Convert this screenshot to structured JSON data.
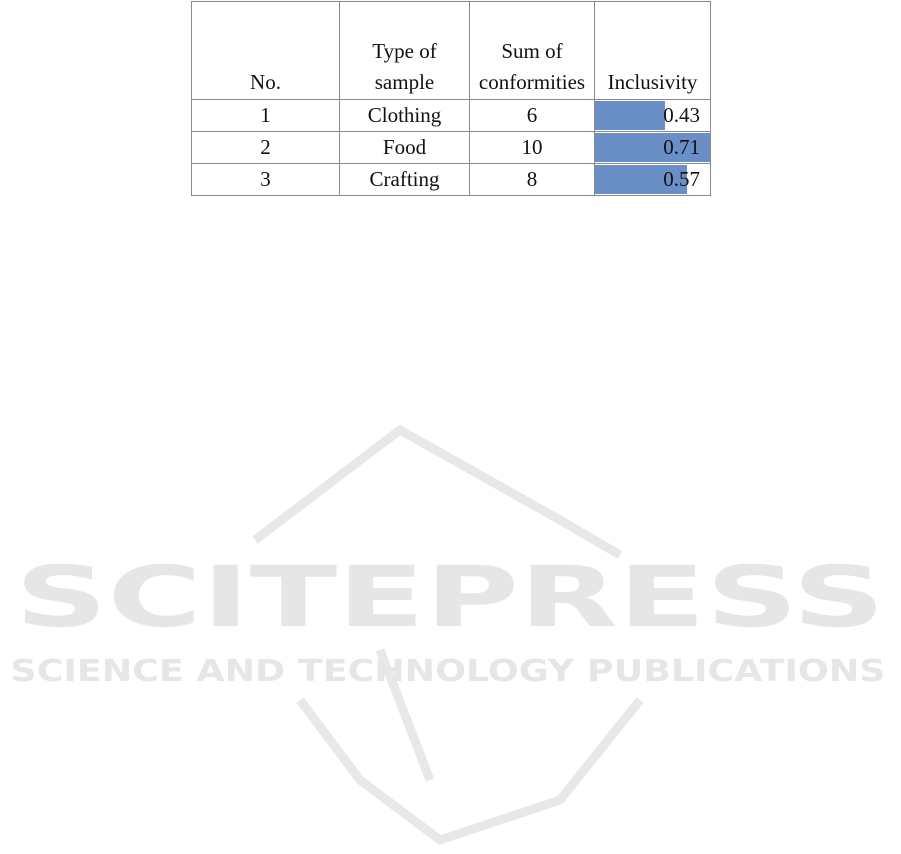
{
  "table": {
    "headers": [
      "No.",
      "Type of sample",
      "Sum of conformities",
      "Inclusivity"
    ],
    "header_lines": [
      [
        "No."
      ],
      [
        "Type of",
        "sample"
      ],
      [
        "Sum of",
        "conformities"
      ],
      [
        "Inclusivity"
      ]
    ],
    "rows": [
      {
        "no": "1",
        "type": "Clothing",
        "sum": "6",
        "inclusivity": "0.43",
        "value": 0.43
      },
      {
        "no": "2",
        "type": "Food",
        "sum": "10",
        "inclusivity": "0.71",
        "value": 0.71
      },
      {
        "no": "3",
        "type": "Crafting",
        "sum": "8",
        "inclusivity": "0.57",
        "value": 0.57
      }
    ],
    "data_bar_color": "#6a8fc7",
    "data_bar_max": 0.71
  },
  "watermark": {
    "title": "SCITEPRESS",
    "subtitle": "SCIENCE AND TECHNOLOGY PUBLICATIONS",
    "color": "#e6e6e6"
  }
}
